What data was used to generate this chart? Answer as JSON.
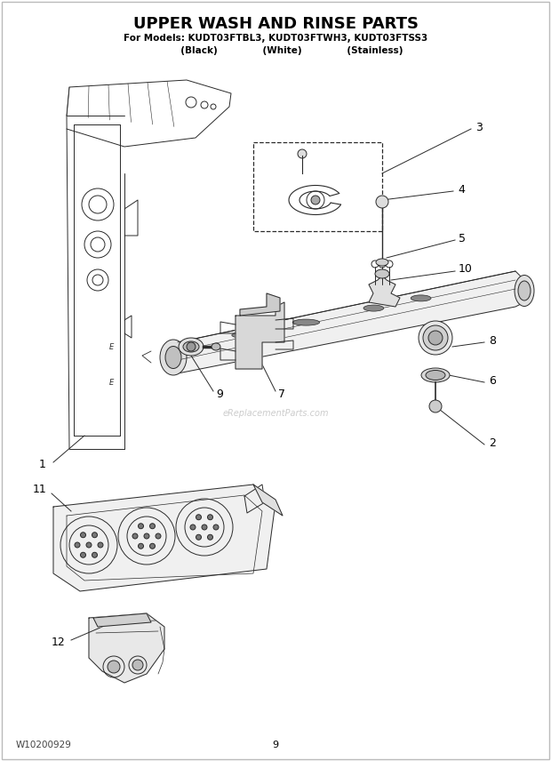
{
  "title": "UPPER WASH AND RINSE PARTS",
  "subtitle": "For Models: KUDT03FTBL3, KUDT03FTWH3, KUDT03FTSS3",
  "subtitle2": "          (Black)              (White)              (Stainless)",
  "footer_left": "W10200929",
  "footer_center": "9",
  "bg_color": "#ffffff",
  "title_color": "#000000",
  "lc": "#2a2a2a",
  "lw": 0.7,
  "figsize": [
    6.2,
    8.56
  ],
  "dpi": 100
}
